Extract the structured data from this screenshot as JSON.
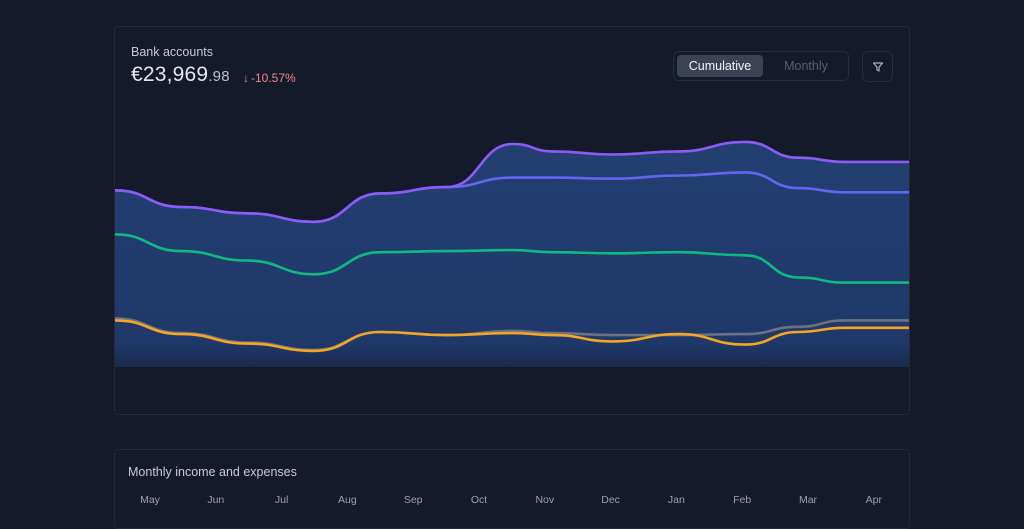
{
  "bank_card": {
    "title": "Bank accounts",
    "amount_main": "€23,969",
    "amount_cents": ".98",
    "change_arrow": "↓",
    "change": "-10.57%",
    "toggle": {
      "active": "Cumulative",
      "inactive": "Monthly"
    },
    "filter_icon": "filter-icon"
  },
  "monthly_card": {
    "title": "Monthly income and expenses",
    "months": [
      "May",
      "Jun",
      "Jul",
      "Aug",
      "Sep",
      "Oct",
      "Nov",
      "Dec",
      "Jan",
      "Feb",
      "Mar",
      "Apr"
    ]
  },
  "colors": {
    "purple": "#8b5cf6",
    "indigo": "#6366f1",
    "green": "#10b981",
    "gray": "#6b7280",
    "orange": "#f5a524",
    "fill_top": "#26457e",
    "background": "#141a2a"
  },
  "chart_data": {
    "type": "area",
    "title": "Bank accounts",
    "cumulative": true,
    "x": [
      0,
      1,
      2,
      3,
      4,
      5,
      6,
      6.6,
      7.5,
      8.5,
      9.5,
      10.3,
      11,
      12
    ],
    "ylim": [
      0,
      30000
    ],
    "series": [
      {
        "name": "purple",
        "color": "#8b5cf6",
        "values": [
          23500,
          21900,
          21300,
          20500,
          23200,
          23800,
          27900,
          27200,
          26900,
          27200,
          28100,
          26600,
          26200,
          26200
        ]
      },
      {
        "name": "indigo",
        "color": "#6366f1",
        "values": [
          23500,
          21900,
          21300,
          20500,
          23200,
          23800,
          24700,
          24700,
          24600,
          24900,
          25200,
          23700,
          23300,
          23300
        ]
      },
      {
        "name": "green",
        "color": "#10b981",
        "values": [
          19300,
          17700,
          16800,
          15500,
          17600,
          17700,
          17800,
          17600,
          17500,
          17600,
          17300,
          15200,
          14700,
          14700
        ]
      },
      {
        "name": "gray",
        "color": "#6b7280",
        "values": [
          11300,
          9900,
          9000,
          8300,
          10000,
          9700,
          10100,
          9900,
          9700,
          9700,
          9800,
          10500,
          11100,
          11100
        ]
      },
      {
        "name": "orange",
        "color": "#f5a524",
        "values": [
          11100,
          9800,
          8900,
          8200,
          10000,
          9700,
          9900,
          9700,
          9100,
          9800,
          8800,
          10000,
          10400,
          10400
        ]
      }
    ]
  }
}
